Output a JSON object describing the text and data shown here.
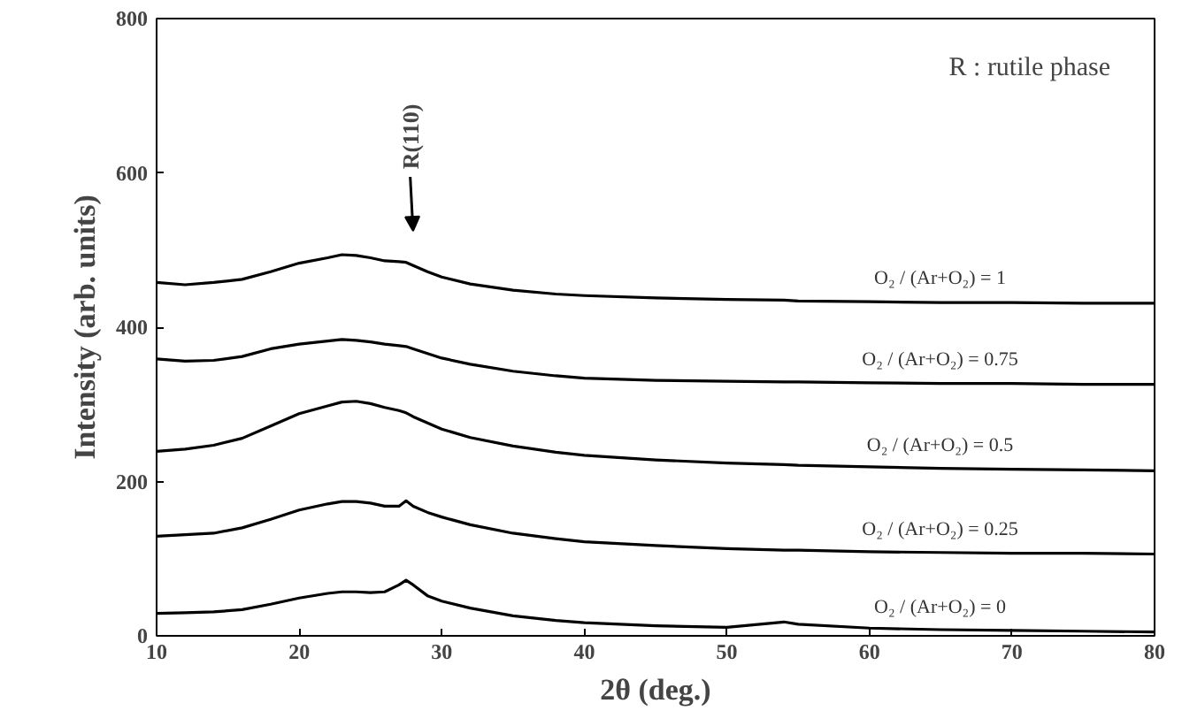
{
  "chart_data": {
    "type": "line",
    "xlabel": "2θ (deg.)",
    "ylabel": "Intensity (arb. units)",
    "x": [
      10,
      12,
      14,
      16,
      18,
      20,
      22,
      23,
      24,
      25,
      26,
      27,
      27.5,
      28,
      29,
      30,
      32,
      35,
      38,
      40,
      45,
      50,
      54,
      55,
      60,
      65,
      70,
      75,
      80
    ],
    "series": [
      {
        "name": "O₂ / (Ar+O₂) = 1",
        "color": "#000000",
        "values": [
          458,
          455,
          458,
          462,
          472,
          483,
          490,
          494,
          493,
          490,
          486,
          485,
          484,
          480,
          472,
          465,
          456,
          448,
          443,
          441,
          438,
          436,
          435,
          434,
          433,
          432,
          432,
          431,
          431
        ]
      },
      {
        "name": "O₂ / (Ar+O₂) = 0.75",
        "color": "#000000",
        "values": [
          359,
          356,
          357,
          362,
          372,
          378,
          382,
          384,
          383,
          381,
          378,
          376,
          375,
          372,
          366,
          360,
          352,
          343,
          337,
          334,
          331,
          330,
          329,
          329,
          328,
          327,
          327,
          326,
          326
        ]
      },
      {
        "name": "O₂ / (Ar+O₂) = 0.5",
        "color": "#000000",
        "values": [
          239,
          242,
          247,
          256,
          272,
          288,
          298,
          303,
          304,
          301,
          296,
          292,
          289,
          284,
          276,
          268,
          257,
          246,
          238,
          234,
          228,
          224,
          222,
          221,
          219,
          217,
          216,
          215,
          214
        ]
      },
      {
        "name": "O₂ / (Ar+O₂) = 0.25",
        "color": "#000000",
        "values": [
          129,
          131,
          133,
          140,
          151,
          163,
          171,
          174,
          174,
          172,
          168,
          168,
          175,
          168,
          160,
          154,
          144,
          133,
          126,
          122,
          117,
          113,
          111,
          111,
          109,
          108,
          107,
          107,
          106
        ]
      },
      {
        "name": "O₂ / (Ar+O₂) = 0",
        "color": "#000000",
        "values": [
          29,
          30,
          31,
          34,
          41,
          49,
          55,
          57,
          57,
          56,
          57,
          66,
          72,
          66,
          52,
          45,
          36,
          26,
          20,
          17,
          13,
          11,
          18,
          15,
          10,
          8,
          7,
          6,
          5
        ]
      }
    ],
    "xlim": [
      10,
      80
    ],
    "ylim": [
      0,
      800
    ],
    "xticks": [
      10,
      20,
      30,
      40,
      50,
      60,
      70,
      80
    ],
    "yticks": [
      0,
      200,
      400,
      600,
      800
    ],
    "annotations": [
      "R : rutile phase",
      "R(110)"
    ],
    "grid": false,
    "marker": "none",
    "line_style": "solid"
  }
}
